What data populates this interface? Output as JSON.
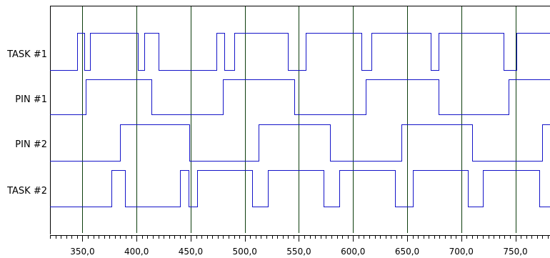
{
  "chart_data": {
    "type": "line",
    "title": "",
    "xlabel": "",
    "ylabel": "",
    "xlim": [
      320,
      782
    ],
    "grid": true,
    "x_ticks": [
      350,
      400,
      450,
      500,
      550,
      600,
      650,
      700,
      750
    ],
    "tick_labels": [
      "350,0",
      "400,0",
      "450,0",
      "500,0",
      "550,0",
      "600,0",
      "650,0",
      "700,0",
      "750,0"
    ],
    "series": [
      {
        "name": "TASK #1",
        "start_level": 0,
        "transitions": [
          345,
          352,
          357,
          401,
          407,
          420,
          474,
          481,
          490,
          540,
          556,
          608,
          617,
          672,
          679,
          739,
          751
        ],
        "end_x": 782
      },
      {
        "name": "PIN #1",
        "start_level": 0,
        "transitions": [
          353,
          414,
          480,
          546,
          612,
          679,
          744
        ],
        "end_x": 782
      },
      {
        "name": "PIN #2",
        "start_level": 0,
        "transitions": [
          385,
          449,
          513,
          579,
          645,
          710,
          775
        ],
        "end_x": 782
      },
      {
        "name": "TASK #2",
        "start_level": 0,
        "transitions": [
          377,
          389,
          440,
          448,
          456,
          507,
          521,
          573,
          587,
          639,
          655,
          706,
          720,
          772
        ],
        "end_x": 782
      }
    ],
    "colors": {
      "trace": "#1414c8",
      "grid": "#0d3d0d",
      "axis": "#000000",
      "frame": "#000000"
    }
  }
}
